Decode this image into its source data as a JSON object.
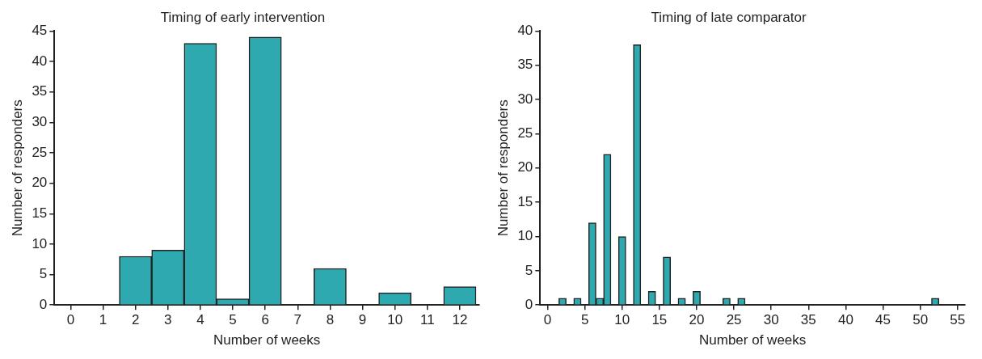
{
  "chart_data": [
    {
      "type": "bar",
      "title": "Timing of early intervention",
      "xlabel": "Number of weeks",
      "ylabel": "Number of responders",
      "x": [
        0,
        1,
        2,
        3,
        4,
        5,
        6,
        7,
        8,
        9,
        10,
        11,
        12
      ],
      "values": [
        0,
        0,
        8,
        9,
        43,
        1,
        44,
        0,
        6,
        0,
        2,
        0,
        3
      ],
      "color": "#2ea9b0",
      "xlim": [
        -0.5,
        12.6
      ],
      "xticks": [
        0,
        1,
        2,
        3,
        4,
        5,
        6,
        7,
        8,
        9,
        10,
        11,
        12
      ],
      "ylim": [
        0,
        45
      ],
      "yticks": [
        0,
        5,
        10,
        15,
        20,
        25,
        30,
        35,
        40,
        45
      ],
      "grid": false,
      "legend": false
    },
    {
      "type": "bar",
      "title": "Timing of late comparator",
      "xlabel": "Number of weeks",
      "ylabel": "Number of responders",
      "x": [
        2,
        4,
        6,
        7,
        8,
        10,
        12,
        14,
        16,
        18,
        20,
        24,
        26,
        52
      ],
      "values": [
        1,
        1,
        12,
        1,
        22,
        10,
        38,
        2,
        7,
        1,
        2,
        1,
        1,
        1
      ],
      "color": "#2ea9b0",
      "xlim": [
        -1,
        56
      ],
      "xticks": [
        0,
        5,
        10,
        15,
        20,
        25,
        30,
        35,
        40,
        45,
        50,
        55
      ],
      "ylim": [
        0,
        40
      ],
      "yticks": [
        0,
        5,
        10,
        15,
        20,
        25,
        30,
        35,
        40
      ],
      "grid": false,
      "legend": false
    }
  ]
}
